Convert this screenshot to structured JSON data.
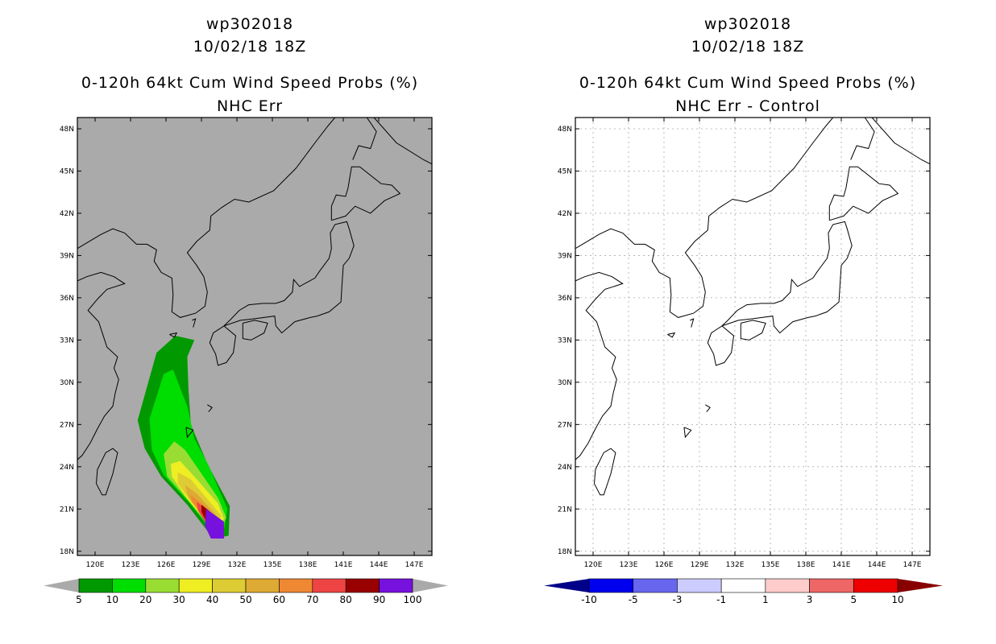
{
  "panels": [
    {
      "id": "left",
      "title_line1": "wp302018",
      "title_line2": "10/02/18 18Z",
      "title_line3": "0-120h 64kt Cum Wind Speed Probs (%)",
      "title_line4": "NHC Err",
      "background": "#aaaaaa"
    },
    {
      "id": "right",
      "title_line1": "wp302018",
      "title_line2": "10/02/18 18Z",
      "title_line3": "0-120h 64kt Cum Wind Speed Probs (%)",
      "title_line4": "NHC Err - Control",
      "background": "#ffffff"
    }
  ],
  "chart_data": [
    {
      "type": "heatmap",
      "title": "0-120h 64kt Cum Wind Speed Probs (%) - NHC Err",
      "subtitle": "wp302018 10/02/18 18Z",
      "lon_ticks": [
        "120E",
        "123E",
        "126E",
        "129E",
        "132E",
        "135E",
        "138E",
        "141E",
        "144E",
        "147E"
      ],
      "lat_ticks": [
        "18N",
        "21N",
        "24N",
        "27N",
        "30N",
        "33N",
        "36N",
        "39N",
        "42N",
        "45N",
        "48N"
      ],
      "xlim": [
        118.5,
        148.5
      ],
      "ylim": [
        17.7,
        48.8
      ],
      "grid": false,
      "colorbar": {
        "labels": [
          "5",
          "10",
          "20",
          "30",
          "40",
          "50",
          "60",
          "70",
          "80",
          "90",
          "100"
        ],
        "colors": [
          "#009900",
          "#00dd00",
          "#99dd33",
          "#eeee22",
          "#ddcc33",
          "#ddaa33",
          "#ee8833",
          "#ee4444",
          "#990000",
          "#7711dd"
        ],
        "end_colors": [
          "#aaaaaa",
          "#aaaaaa"
        ]
      },
      "contours": [
        {
          "level": 5,
          "color": "#009900",
          "polygon": [
            [
              123.6,
              27.3
            ],
            [
              125.2,
              32.1
            ],
            [
              126.8,
              33.3
            ],
            [
              128.4,
              33.0
            ],
            [
              127.8,
              31.8
            ],
            [
              127.9,
              29.5
            ],
            [
              128.1,
              27.0
            ],
            [
              129.5,
              24.2
            ],
            [
              131.4,
              21.2
            ],
            [
              131.3,
              19.1
            ],
            [
              130.0,
              18.9
            ],
            [
              127.8,
              21.3
            ],
            [
              125.6,
              23.3
            ],
            [
              124.2,
              25.3
            ]
          ]
        },
        {
          "level": 10,
          "color": "#00dd00",
          "polygon": [
            [
              124.6,
              27.4
            ],
            [
              125.8,
              30.6
            ],
            [
              126.6,
              30.9
            ],
            [
              127.8,
              28.3
            ],
            [
              128.4,
              26.0
            ],
            [
              129.6,
              24.1
            ],
            [
              131.2,
              21.0
            ],
            [
              130.9,
              19.5
            ],
            [
              129.8,
              19.5
            ],
            [
              127.9,
              21.5
            ],
            [
              125.8,
              23.4
            ],
            [
              124.8,
              25.2
            ]
          ]
        },
        {
          "level": 20,
          "color": "#99dd33",
          "polygon": [
            [
              125.8,
              24.9
            ],
            [
              126.7,
              25.8
            ],
            [
              127.6,
              25.2
            ],
            [
              128.6,
              24.0
            ],
            [
              130.4,
              21.8
            ],
            [
              131.1,
              20.4
            ],
            [
              130.7,
              19.6
            ],
            [
              129.7,
              19.7
            ],
            [
              128.0,
              21.5
            ],
            [
              126.1,
              23.3
            ]
          ]
        },
        {
          "level": 30,
          "color": "#eeee22",
          "polygon": [
            [
              126.4,
              24.2
            ],
            [
              127.2,
              24.4
            ],
            [
              128.5,
              23.2
            ],
            [
              130.4,
              21.4
            ],
            [
              130.9,
              20.3
            ],
            [
              130.4,
              19.8
            ],
            [
              129.4,
              20.1
            ],
            [
              127.8,
              21.7
            ],
            [
              126.5,
              23.3
            ]
          ]
        },
        {
          "level": 40,
          "color": "#ddcc33",
          "polygon": [
            [
              127.0,
              23.6
            ],
            [
              128.1,
              23.1
            ],
            [
              129.6,
              21.6
            ],
            [
              130.7,
              20.5
            ],
            [
              130.3,
              19.9
            ],
            [
              129.4,
              20.2
            ],
            [
              127.9,
              21.8
            ],
            [
              127.0,
              22.8
            ]
          ]
        },
        {
          "level": 50,
          "color": "#ddaa33",
          "polygon": [
            [
              127.6,
              22.7
            ],
            [
              128.6,
              22.1
            ],
            [
              129.9,
              20.9
            ],
            [
              130.5,
              20.3
            ],
            [
              129.8,
              20.0
            ],
            [
              128.9,
              20.7
            ],
            [
              127.9,
              21.8
            ]
          ]
        },
        {
          "level": 60,
          "color": "#ee8833",
          "polygon": [
            [
              128.1,
              22.0
            ],
            [
              129.0,
              21.4
            ],
            [
              130.2,
              20.5
            ],
            [
              129.8,
              20.1
            ],
            [
              128.9,
              20.8
            ],
            [
              128.2,
              21.5
            ]
          ]
        },
        {
          "level": 70,
          "color": "#ee4444",
          "polygon": [
            [
              128.6,
              21.5
            ],
            [
              129.4,
              21.0
            ],
            [
              130.3,
              20.4
            ],
            [
              130.1,
              19.8
            ],
            [
              129.3,
              20.1
            ],
            [
              128.7,
              20.9
            ]
          ]
        },
        {
          "level": 80,
          "color": "#990000",
          "polygon": [
            [
              129.0,
              21.3
            ],
            [
              129.6,
              20.9
            ],
            [
              130.2,
              20.4
            ],
            [
              129.9,
              20.0
            ],
            [
              129.3,
              20.3
            ],
            [
              129.0,
              20.8
            ]
          ]
        },
        {
          "level": 90,
          "color": "#7711dd",
          "polygon": [
            [
              129.4,
              21.0
            ],
            [
              130.9,
              20.1
            ],
            [
              130.9,
              18.9
            ],
            [
              129.8,
              18.9
            ],
            [
              129.3,
              19.8
            ]
          ]
        }
      ]
    },
    {
      "type": "heatmap",
      "title": "0-120h 64kt Cum Wind Speed Probs (%) - NHC Err - Control",
      "subtitle": "wp302018 10/02/18 18Z",
      "lon_ticks": [
        "120E",
        "123E",
        "126E",
        "129E",
        "132E",
        "135E",
        "138E",
        "141E",
        "144E",
        "147E"
      ],
      "lat_ticks": [
        "18N",
        "21N",
        "24N",
        "27N",
        "30N",
        "33N",
        "36N",
        "39N",
        "42N",
        "45N",
        "48N"
      ],
      "xlim": [
        118.5,
        148.5
      ],
      "ylim": [
        17.7,
        48.8
      ],
      "grid": true,
      "colorbar": {
        "labels": [
          "-10",
          "-5",
          "-3",
          "-1",
          "1",
          "3",
          "5",
          "10"
        ],
        "colors": [
          "#0000ee",
          "#6666ee",
          "#ccccff",
          "#ffffff",
          "#ffcccc",
          "#ee6666",
          "#ee0000"
        ],
        "end_colors": [
          "#000088",
          "#880000"
        ]
      },
      "contours": []
    }
  ]
}
